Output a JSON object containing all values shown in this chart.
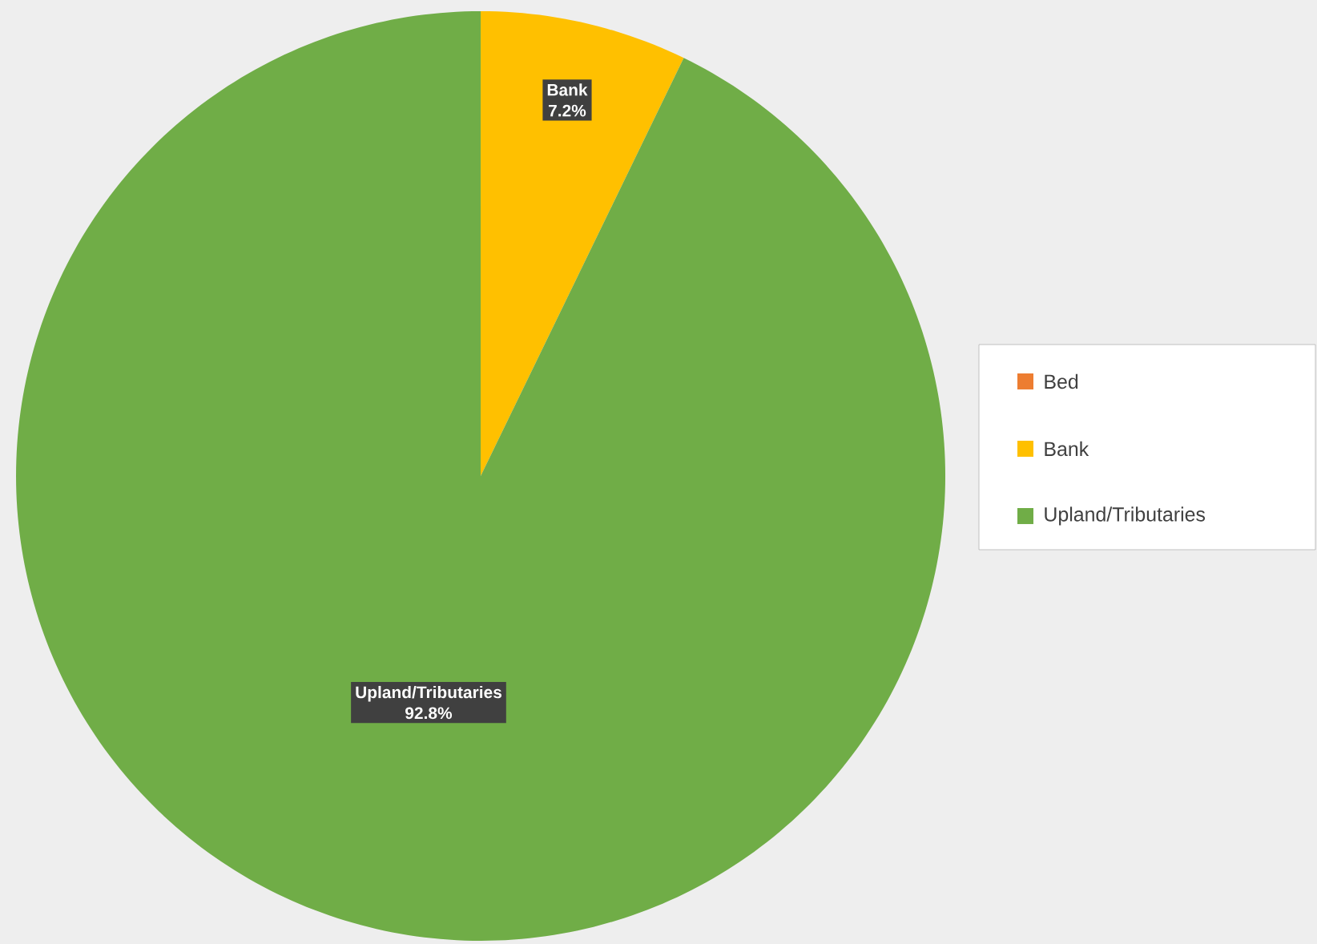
{
  "chart_data": {
    "type": "pie",
    "categories": [
      "Bed",
      "Bank",
      "Upland/Tributaries"
    ],
    "values": [
      0,
      7.2,
      92.8
    ],
    "colors": [
      "#ed7d31",
      "#ffc000",
      "#70ad47"
    ],
    "value_labels": [
      null,
      "7.2%",
      "92.8%"
    ],
    "legend": "right"
  }
}
